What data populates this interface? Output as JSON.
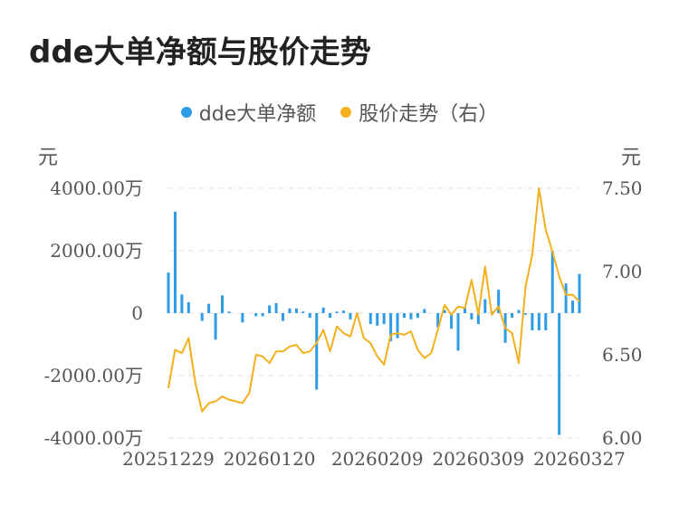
{
  "title": "dde大单净额与股价走势",
  "legend": {
    "items": [
      {
        "label": "dde大单净额",
        "color": "#2e9be6"
      },
      {
        "label": "股价走势（右）",
        "color": "#f2b01e"
      }
    ]
  },
  "units": {
    "left": "元",
    "right": "元"
  },
  "chart_data": {
    "type": "bar+line",
    "title": "dde大单净额与股价走势",
    "x_tick_labels": [
      "20251229",
      "20260120",
      "20260209",
      "20260309",
      "20260327"
    ],
    "y_left": {
      "unit": "元",
      "ylim": [
        -4000,
        4000
      ],
      "tick_labels": [
        "4000.00万",
        "2000.00万",
        "0",
        "-2000.00万",
        "-4000.00万"
      ]
    },
    "y_right": {
      "unit": "元",
      "ylim": [
        6.0,
        7.5
      ],
      "tick_labels": [
        "7.50",
        "7.00",
        "6.50",
        "6.00"
      ]
    },
    "grid": true,
    "legend_position": "top-center",
    "series": [
      {
        "name": "dde大单净额",
        "type": "bar",
        "axis": "left",
        "color": "#2e9be6",
        "values": [
          1300,
          3250,
          600,
          350,
          0,
          -250,
          300,
          -850,
          570,
          50,
          0,
          -300,
          0,
          -100,
          -100,
          250,
          320,
          -250,
          150,
          150,
          50,
          -150,
          -2450,
          180,
          -150,
          50,
          80,
          -200,
          -50,
          0,
          -350,
          -400,
          -350,
          -900,
          -800,
          -150,
          -200,
          -150,
          130,
          0,
          -450,
          100,
          -500,
          -1200,
          180,
          -200,
          -350,
          450,
          50,
          750,
          -950,
          -150,
          100,
          -50,
          -550,
          -550,
          -550,
          2000,
          -3900,
          950,
          400,
          1250
        ]
      },
      {
        "name": "股价走势（右）",
        "type": "line",
        "axis": "right",
        "color": "#f2b01e",
        "values": [
          6.3,
          6.53,
          6.51,
          6.6,
          6.33,
          6.16,
          6.21,
          6.22,
          6.25,
          6.23,
          6.22,
          6.21,
          6.27,
          6.5,
          6.49,
          6.45,
          6.52,
          6.52,
          6.55,
          6.56,
          6.51,
          6.52,
          6.57,
          6.65,
          6.52,
          6.67,
          6.63,
          6.61,
          6.75,
          6.6,
          6.57,
          6.49,
          6.44,
          6.62,
          6.63,
          6.62,
          6.64,
          6.53,
          6.48,
          6.51,
          6.65,
          6.8,
          6.74,
          6.79,
          6.78,
          6.95,
          6.74,
          7.03,
          6.74,
          6.79,
          6.66,
          6.63,
          6.45,
          6.91,
          7.1,
          7.5,
          7.25,
          7.12,
          6.97,
          6.86,
          6.86,
          6.82
        ]
      }
    ]
  }
}
